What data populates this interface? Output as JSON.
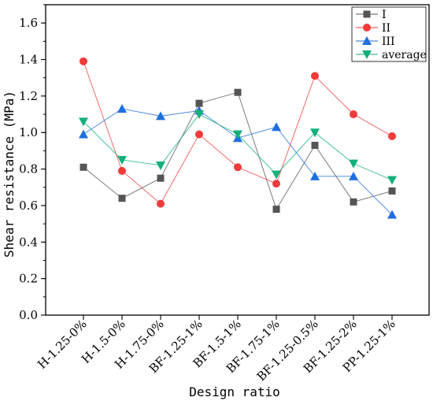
{
  "chart_data": {
    "type": "line",
    "xlabel": "Design ratio",
    "ylabel": "Shear resistance (MPa)",
    "ylim": [
      0.0,
      1.7
    ],
    "yticks": [
      0.0,
      0.2,
      0.4,
      0.6,
      0.8,
      1.0,
      1.2,
      1.4,
      1.6
    ],
    "ytick_labels": [
      "0.0",
      "0.2",
      "0.4",
      "0.6",
      "0.8",
      "1.0",
      "1.2",
      "1.4",
      "1.6"
    ],
    "categories": [
      "H-1.25-0%",
      "H-1.5-0%",
      "H-1.75-0%",
      "BF-1.25-1%",
      "BF-1.5-1%",
      "BF-1.75-1%",
      "BF-1.25-0.5%",
      "BF-1.25-2%",
      "PP-1.25-1%"
    ],
    "legend_position": "top-right",
    "grid": false,
    "series": [
      {
        "name": "I",
        "color": "#555555",
        "marker": "square",
        "values": [
          0.81,
          0.64,
          0.75,
          1.16,
          1.22,
          0.58,
          0.93,
          0.62,
          0.68
        ]
      },
      {
        "name": "II",
        "color": "#f03b3b",
        "marker": "circle",
        "values": [
          1.39,
          0.79,
          0.61,
          0.99,
          0.81,
          0.72,
          1.31,
          1.1,
          0.98
        ]
      },
      {
        "name": "III",
        "color": "#1f6fe0",
        "marker": "triangle-up",
        "values": [
          0.99,
          1.13,
          1.09,
          1.12,
          0.97,
          1.03,
          0.76,
          0.76,
          0.55
        ]
      },
      {
        "name": "average",
        "color": "#14b07a",
        "marker": "triangle-down",
        "values": [
          1.06,
          0.85,
          0.82,
          1.1,
          0.99,
          0.77,
          1.0,
          0.83,
          0.74
        ]
      }
    ]
  }
}
